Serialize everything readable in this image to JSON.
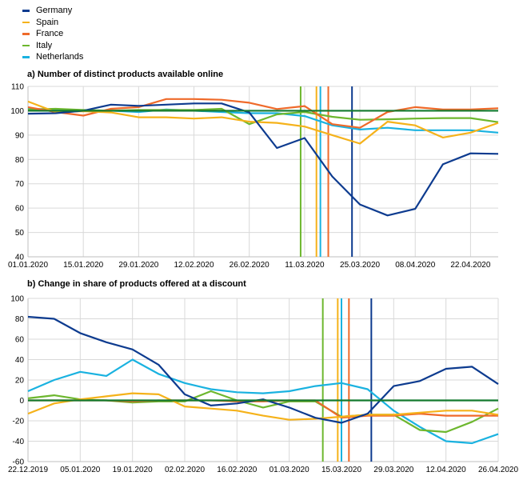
{
  "legend": {
    "items": [
      {
        "label": "Germany",
        "color": "#0d3b8f"
      },
      {
        "label": "Spain",
        "color": "#f5b21a"
      },
      {
        "label": "France",
        "color": "#ef6a2a"
      },
      {
        "label": "Italy",
        "color": "#6db72e"
      },
      {
        "label": "Netherlands",
        "color": "#1ab2e0"
      }
    ]
  },
  "chart_data": [
    {
      "type": "line",
      "title": "a) Number of distinct products available online",
      "xlabel": "",
      "ylabel": "",
      "x": [
        "01.01.2020",
        "08.01.2020",
        "15.01.2020",
        "22.01.2020",
        "29.01.2020",
        "05.02.2020",
        "12.02.2020",
        "19.02.2020",
        "26.02.2020",
        "04.03.2020",
        "11.03.2020",
        "18.03.2020",
        "25.03.2020",
        "01.04.2020",
        "08.04.2020",
        "15.04.2020",
        "22.04.2020",
        "29.04.2020"
      ],
      "xtick_labels": [
        "01.01.2020",
        "15.01.2020",
        "29.01.2020",
        "12.02.2020",
        "26.02.2020",
        "11.03.2020",
        "25.03.2020",
        "08.04.2020",
        "22.04.2020"
      ],
      "ylim": [
        40,
        110
      ],
      "yticks": [
        40,
        50,
        60,
        70,
        80,
        90,
        100,
        110
      ],
      "grid": true,
      "reference_line": {
        "y": 100,
        "color": "#137a2e"
      },
      "vertical_markers": [
        {
          "x": "10.03.2020",
          "color": "#6db72e"
        },
        {
          "x": "14.03.2020",
          "color": "#f5b21a"
        },
        {
          "x": "15.03.2020",
          "color": "#1ab2e0"
        },
        {
          "x": "17.03.2020",
          "color": "#ef6a2a"
        },
        {
          "x": "23.03.2020",
          "color": "#0d3b8f"
        }
      ],
      "series": [
        {
          "name": "Germany",
          "color": "#0d3b8f",
          "values": [
            98.8,
            99.0,
            100.0,
            102.5,
            102.0,
            102.5,
            103.0,
            103.0,
            99.3,
            84.7,
            88.8,
            73.0,
            61.5,
            57.0,
            59.7,
            78.0,
            82.5,
            82.3
          ]
        },
        {
          "name": "Spain",
          "color": "#f5b21a",
          "values": [
            103.8,
            99.5,
            99.8,
            99.3,
            97.3,
            97.3,
            96.8,
            97.3,
            95.5,
            95.0,
            93.5,
            90.0,
            86.5,
            95.5,
            94.0,
            89.0,
            91.0,
            95.0
          ]
        },
        {
          "name": "France",
          "color": "#ef6a2a",
          "values": [
            101.5,
            99.5,
            98.0,
            100.8,
            101.5,
            104.8,
            104.8,
            104.5,
            103.3,
            100.7,
            101.9,
            94.5,
            93.0,
            99.5,
            101.5,
            100.5,
            100.5,
            101.0
          ]
        },
        {
          "name": "Italy",
          "color": "#6db72e",
          "values": [
            100.5,
            100.8,
            100.3,
            100.0,
            100.3,
            100.3,
            100.3,
            100.8,
            94.5,
            98.5,
            99.5,
            97.5,
            96.3,
            96.5,
            96.8,
            97.0,
            97.0,
            95.3
          ]
        },
        {
          "name": "Netherlands",
          "color": "#1ab2e0",
          "values": [
            100.8,
            100.5,
            100.0,
            100.0,
            99.5,
            100.5,
            100.0,
            99.5,
            99.0,
            99.0,
            97.8,
            94.0,
            92.3,
            93.0,
            92.0,
            92.0,
            92.0,
            91.0
          ]
        }
      ]
    },
    {
      "type": "line",
      "title": "b) Change in share of products offered at a discount",
      "xlabel": "",
      "ylabel": "",
      "x": [
        "22.12.2019",
        "29.12.2019",
        "05.01.2020",
        "12.01.2020",
        "19.01.2020",
        "26.01.2020",
        "02.02.2020",
        "09.02.2020",
        "16.02.2020",
        "23.02.2020",
        "01.03.2020",
        "08.03.2020",
        "15.03.2020",
        "22.03.2020",
        "29.03.2020",
        "05.04.2020",
        "12.04.2020",
        "19.04.2020",
        "26.04.2020"
      ],
      "xtick_labels": [
        "22.12.2019",
        "05.01.2020",
        "19.01.2020",
        "02.02.2020",
        "16.02.2020",
        "01.03.2020",
        "15.03.2020",
        "29.03.2020",
        "12.04.2020",
        "26.04.2020"
      ],
      "ylim": [
        -60,
        100
      ],
      "yticks": [
        -60,
        -40,
        -20,
        0,
        20,
        40,
        60,
        80,
        100
      ],
      "grid": true,
      "reference_line": {
        "y": 0,
        "color": "#137a2e"
      },
      "vertical_markers": [
        {
          "x": "10.03.2020",
          "color": "#6db72e"
        },
        {
          "x": "14.03.2020",
          "color": "#f5b21a"
        },
        {
          "x": "15.03.2020",
          "color": "#1ab2e0"
        },
        {
          "x": "17.03.2020",
          "color": "#ef6a2a"
        },
        {
          "x": "23.03.2020",
          "color": "#0d3b8f"
        }
      ],
      "series": [
        {
          "name": "Germany",
          "color": "#0d3b8f",
          "values": [
            82,
            80,
            66,
            57,
            50,
            35,
            6,
            -5,
            -3,
            1,
            -7,
            -17,
            -22,
            -13,
            14,
            19,
            31,
            33,
            16
          ]
        },
        {
          "name": "Spain",
          "color": "#f5b21a",
          "values": [
            -13,
            -3,
            1,
            4,
            7,
            6,
            -6,
            -8,
            -10,
            -15,
            -19,
            -18,
            -16,
            -14,
            -14,
            -12,
            -10,
            -10,
            -14
          ]
        },
        {
          "name": "France",
          "color": "#ef6a2a",
          "values": [
            0,
            0,
            0,
            0,
            -1,
            0,
            0,
            0,
            -1,
            -1,
            0,
            0,
            -17,
            -15,
            -15,
            -13,
            -15,
            -15,
            -15
          ]
        },
        {
          "name": "Italy",
          "color": "#6db72e",
          "values": [
            2,
            5,
            1,
            0,
            -2,
            -1,
            -1,
            9,
            0,
            -7,
            -1,
            -1,
            -16,
            -14,
            -14,
            -29,
            -31,
            -21,
            -8
          ]
        },
        {
          "name": "Netherlands",
          "color": "#1ab2e0",
          "values": [
            9,
            20,
            28,
            24,
            40,
            26,
            17,
            11,
            8,
            7,
            9,
            14,
            17,
            11,
            -10,
            -26,
            -40,
            -42,
            -33
          ]
        }
      ]
    }
  ]
}
